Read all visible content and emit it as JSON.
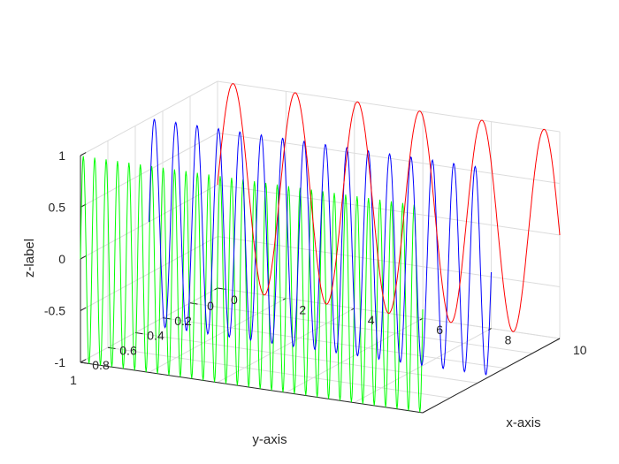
{
  "chart_data": {
    "type": "line",
    "title": "",
    "xlabel": "x-axis",
    "ylabel": "y-axis",
    "zlabel": "z-label",
    "xlim": [
      0,
      10
    ],
    "ylim": [
      0,
      1
    ],
    "zlim": [
      -1,
      1
    ],
    "xticks": [
      "0",
      "2",
      "4",
      "6",
      "8",
      "10"
    ],
    "yticks": [
      "0",
      "0.2",
      "0.4",
      "0.6",
      "0.8",
      "1"
    ],
    "zticks": [
      "-1",
      "-0.5",
      "0",
      "0.5",
      "1"
    ],
    "grid": true,
    "series": [
      {
        "y": 1.0,
        "x_start": 0,
        "x_end": 10,
        "frequency": 3.0,
        "color": "#00ff00"
      },
      {
        "y": 0.5,
        "x_start": 0,
        "x_end": 10,
        "frequency": 1.6,
        "color": "#0000ff"
      },
      {
        "y": 0.0,
        "x_start": 0,
        "x_end": 10,
        "frequency": 0.55,
        "color": "#ff0000"
      }
    ]
  }
}
